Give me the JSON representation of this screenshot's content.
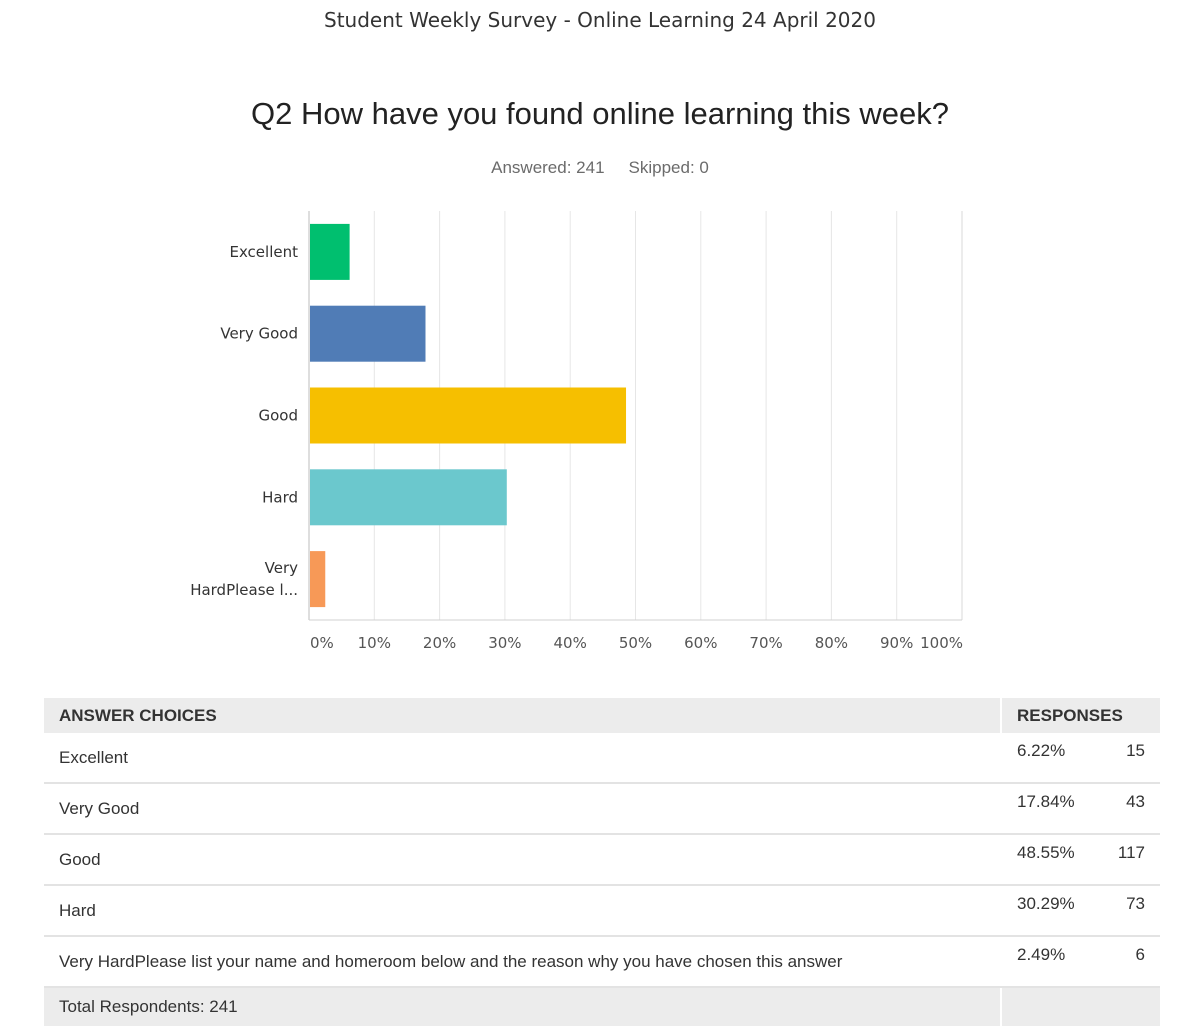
{
  "header": {
    "title": "Student Weekly Survey - Online Learning 24 April 2020"
  },
  "question": {
    "title": "Q2 How have you found online learning this week?",
    "answered": "Answered: 241",
    "skipped": "Skipped: 0"
  },
  "chart_data": {
    "type": "bar",
    "orientation": "horizontal",
    "categories": [
      "Excellent",
      "Very Good",
      "Good",
      "Hard",
      "Very HardPlease l..."
    ],
    "values": [
      6.22,
      17.84,
      48.55,
      30.29,
      2.49
    ],
    "colors": [
      "#00bf6f",
      "#507cb6",
      "#f6bf00",
      "#6bc8cd",
      "#f79957"
    ],
    "xlim": [
      0,
      100
    ],
    "ticks": [
      "0%",
      "10%",
      "20%",
      "30%",
      "40%",
      "50%",
      "60%",
      "70%",
      "80%",
      "90%",
      "100%"
    ],
    "grid": true
  },
  "table": {
    "headers": {
      "choices": "ANSWER CHOICES",
      "responses": "RESPONSES"
    },
    "rows": [
      {
        "choice": "Excellent",
        "percent": "6.22%",
        "count": "15"
      },
      {
        "choice": "Very Good",
        "percent": "17.84%",
        "count": "43"
      },
      {
        "choice": "Good",
        "percent": "48.55%",
        "count": "117"
      },
      {
        "choice": "Hard",
        "percent": "30.29%",
        "count": "73"
      },
      {
        "choice": "Very HardPlease list your name and homeroom below and the reason why you have chosen this answer",
        "percent": "2.49%",
        "count": "6"
      }
    ],
    "total": "Total Respondents: 241"
  }
}
